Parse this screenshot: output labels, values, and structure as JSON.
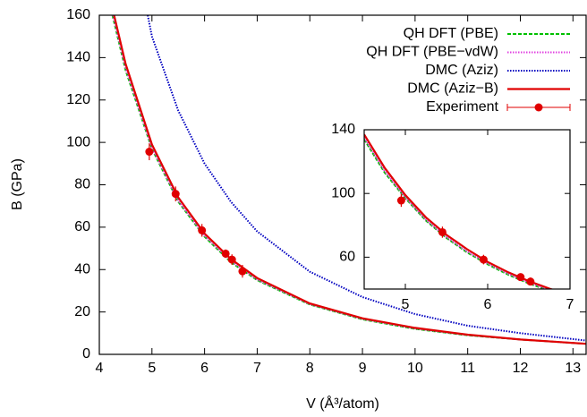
{
  "chart_data": [
    {
      "type": "line",
      "x_label": "V (Å³/atom)",
      "y_label": "B (GPa)",
      "xlim": [
        4,
        13.25
      ],
      "ylim": [
        0,
        160
      ],
      "xticks": [
        4,
        5,
        6,
        7,
        8,
        9,
        10,
        11,
        12,
        13
      ],
      "yticks": [
        0,
        20,
        40,
        60,
        80,
        100,
        120,
        140,
        160
      ],
      "grid": false,
      "legend": "top-right",
      "series": [
        {
          "name": "QH DFT (PBE)",
          "color": "#00c000",
          "style": "dashed",
          "x": [
            4.25,
            4.5,
            5,
            5.5,
            6,
            6.5,
            7,
            8,
            9,
            10,
            11,
            12,
            13.25
          ],
          "values": [
            160,
            134,
            97,
            72,
            55.5,
            43.5,
            35,
            23.5,
            16.5,
            12,
            9,
            7,
            5
          ]
        },
        {
          "name": "QH DFT (PBE−vdW)",
          "color": "#e040e0",
          "style": "dotted",
          "x": [
            4.26,
            4.5,
            5,
            5.5,
            6,
            6.5,
            7,
            8,
            9,
            10,
            11,
            12,
            13.25
          ],
          "values": [
            160,
            135,
            97.5,
            72.5,
            56,
            44,
            35.3,
            23.7,
            16.7,
            12.2,
            9.1,
            7,
            5
          ]
        },
        {
          "name": "DMC (Aziz)",
          "color": "#0000c0",
          "style": "dotted",
          "x": [
            4.92,
            5,
            5.5,
            6,
            6.5,
            7,
            8,
            9,
            10,
            11,
            12,
            13.25
          ],
          "values": [
            160,
            150,
            115,
            90,
            72,
            58,
            39,
            27,
            19,
            13.5,
            10,
            6.5
          ]
        },
        {
          "name": "DMC (Aziz−B)",
          "color": "#e00000",
          "style": "solid",
          "x": [
            4.28,
            4.5,
            5,
            5.5,
            6,
            6.5,
            7,
            8,
            9,
            10,
            11,
            12,
            13.25
          ],
          "values": [
            160,
            137,
            99,
            74,
            57,
            45,
            36,
            24,
            17,
            12.5,
            9.3,
            7,
            5
          ]
        },
        {
          "name": "Experiment",
          "color": "#e00000",
          "style": "points",
          "x": [
            4.95,
            5.45,
            5.95,
            6.4,
            6.52,
            6.72
          ],
          "values": [
            95.6,
            75.7,
            58.5,
            47.5,
            44.7,
            39.2
          ],
          "yerr": [
            4,
            3.5,
            3,
            2,
            2.5,
            3
          ]
        }
      ]
    },
    {
      "type": "line",
      "xlim": [
        4.5,
        7
      ],
      "ylim": [
        40,
        140
      ],
      "xticks": [
        5,
        6,
        7
      ],
      "yticks": [
        60,
        100,
        140
      ],
      "grid": false,
      "series": [
        {
          "color": "#00c000",
          "style": "dashed",
          "x": [
            4.5,
            4.75,
            5,
            5.25,
            5.5,
            5.75,
            6,
            6.25,
            6.5,
            6.75,
            7
          ],
          "values": [
            134,
            113,
            97,
            83,
            72,
            63,
            55.5,
            49,
            43.5,
            39,
            35
          ]
        },
        {
          "color": "#e040e0",
          "style": "dotted",
          "x": [
            4.5,
            4.75,
            5,
            5.25,
            5.5,
            5.75,
            6,
            6.25,
            6.5,
            6.75,
            7
          ],
          "values": [
            135,
            114,
            97.5,
            83.5,
            72.5,
            63.5,
            56,
            49.5,
            44,
            39.5,
            35.3
          ]
        },
        {
          "color": "#e00000",
          "style": "solid",
          "x": [
            4.5,
            4.75,
            5,
            5.25,
            5.5,
            5.75,
            6,
            6.25,
            6.5,
            6.75,
            7
          ],
          "values": [
            137,
            116,
            99,
            85,
            74,
            65,
            57,
            50.5,
            45,
            40.3,
            36
          ]
        },
        {
          "color": "#e00000",
          "style": "points",
          "x": [
            4.95,
            5.45,
            5.95,
            6.4,
            6.52
          ],
          "values": [
            95.6,
            75.7,
            58.5,
            47.5,
            44.7
          ],
          "yerr": [
            4,
            3.5,
            3,
            2,
            2.5
          ]
        }
      ]
    }
  ]
}
